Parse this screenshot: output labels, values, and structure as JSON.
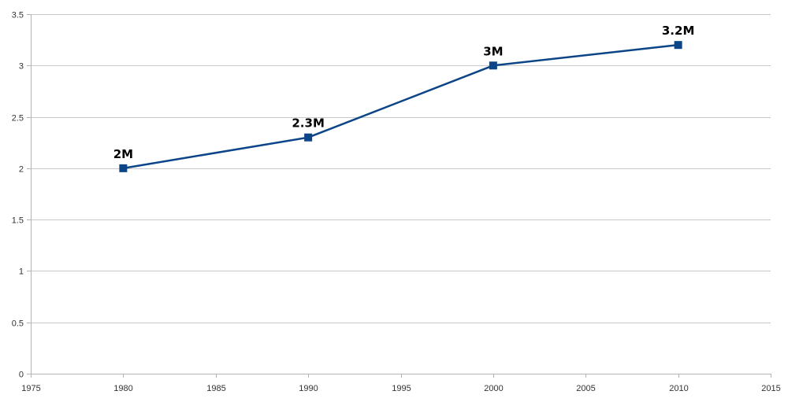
{
  "chart_data": {
    "type": "line",
    "title": "",
    "xlabel": "",
    "ylabel": "",
    "xlim": [
      1975,
      2015
    ],
    "ylim": [
      0,
      3.5
    ],
    "x_ticks": [
      1975,
      1980,
      1985,
      1990,
      1995,
      2000,
      2005,
      2010,
      2015
    ],
    "y_ticks": [
      0,
      0.5,
      1,
      1.5,
      2,
      2.5,
      3,
      3.5
    ],
    "grid": "horizontal",
    "legend": "none",
    "series": [
      {
        "name": "",
        "color": "#0c4587",
        "marker": "square",
        "points": [
          {
            "x": 1980,
            "y": 2,
            "label": "2M"
          },
          {
            "x": 1990,
            "y": 2.3,
            "label": "2.3M"
          },
          {
            "x": 2000,
            "y": 3,
            "label": "3M"
          },
          {
            "x": 2010,
            "y": 3.2,
            "label": "3.2M"
          }
        ]
      }
    ],
    "colors": {
      "grid": "#c8c8c8",
      "axis": "#b3b3b3",
      "line": "#0c4587",
      "tick_text": "#333333",
      "label_text": "#000000"
    }
  }
}
